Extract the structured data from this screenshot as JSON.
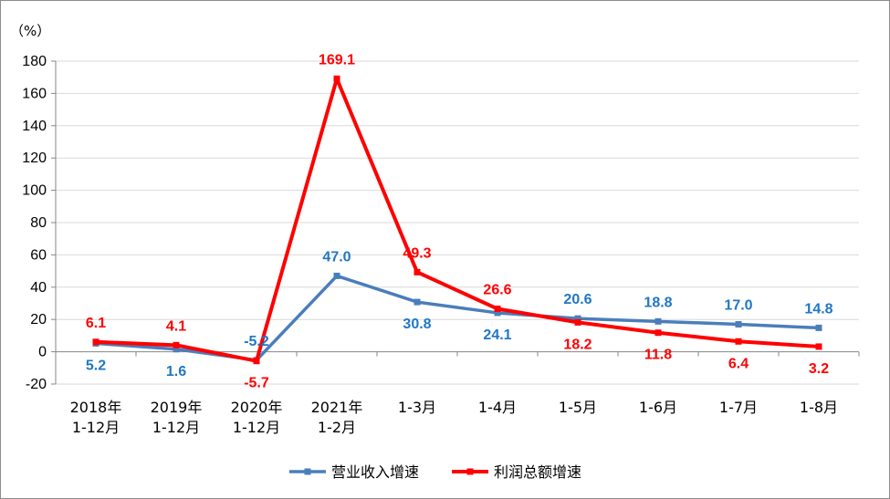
{
  "chart_data": {
    "type": "line",
    "ylabel": "（%）",
    "ylim": [
      -20,
      180
    ],
    "yticks": [
      -20,
      0,
      20,
      40,
      60,
      80,
      100,
      120,
      140,
      160,
      180
    ],
    "grid": "horizontal",
    "legend_position": "bottom",
    "categories": [
      [
        "2018年",
        "1-12月"
      ],
      [
        "2019年",
        "1-12月"
      ],
      [
        "2020年",
        "1-12月"
      ],
      [
        "2021年",
        "1-2月"
      ],
      [
        "1-3月"
      ],
      [
        "1-4月"
      ],
      [
        "1-5月"
      ],
      [
        "1-6月"
      ],
      [
        "1-7月"
      ],
      [
        "1-8月"
      ]
    ],
    "series": [
      {
        "name": "营业收入增速",
        "color": "#4a7ebb",
        "label_color": "#1f77c4",
        "values": [
          5.2,
          1.6,
          -5.2,
          47.0,
          30.8,
          24.1,
          20.6,
          18.8,
          17.0,
          14.8
        ],
        "labels": [
          "5.2",
          "1.6",
          "-5.2",
          "47.0",
          "30.8",
          "24.1",
          "20.6",
          "18.8",
          "17.0",
          "14.8"
        ],
        "label_side": [
          "below",
          "below",
          "above",
          "above",
          "below",
          "below",
          "above",
          "above",
          "above",
          "above"
        ]
      },
      {
        "name": "利润总额增速",
        "color": "#ff0000",
        "label_color": "#ff0000",
        "values": [
          6.1,
          4.1,
          -5.7,
          169.1,
          49.3,
          26.6,
          18.2,
          11.8,
          6.4,
          3.2
        ],
        "labels": [
          "6.1",
          "4.1",
          "-5.7",
          "169.1",
          "49.3",
          "26.6",
          "18.2",
          "11.8",
          "6.4",
          "3.2"
        ],
        "label_side": [
          "above",
          "above",
          "below",
          "above",
          "above",
          "above",
          "below",
          "below",
          "below",
          "below"
        ]
      }
    ]
  }
}
